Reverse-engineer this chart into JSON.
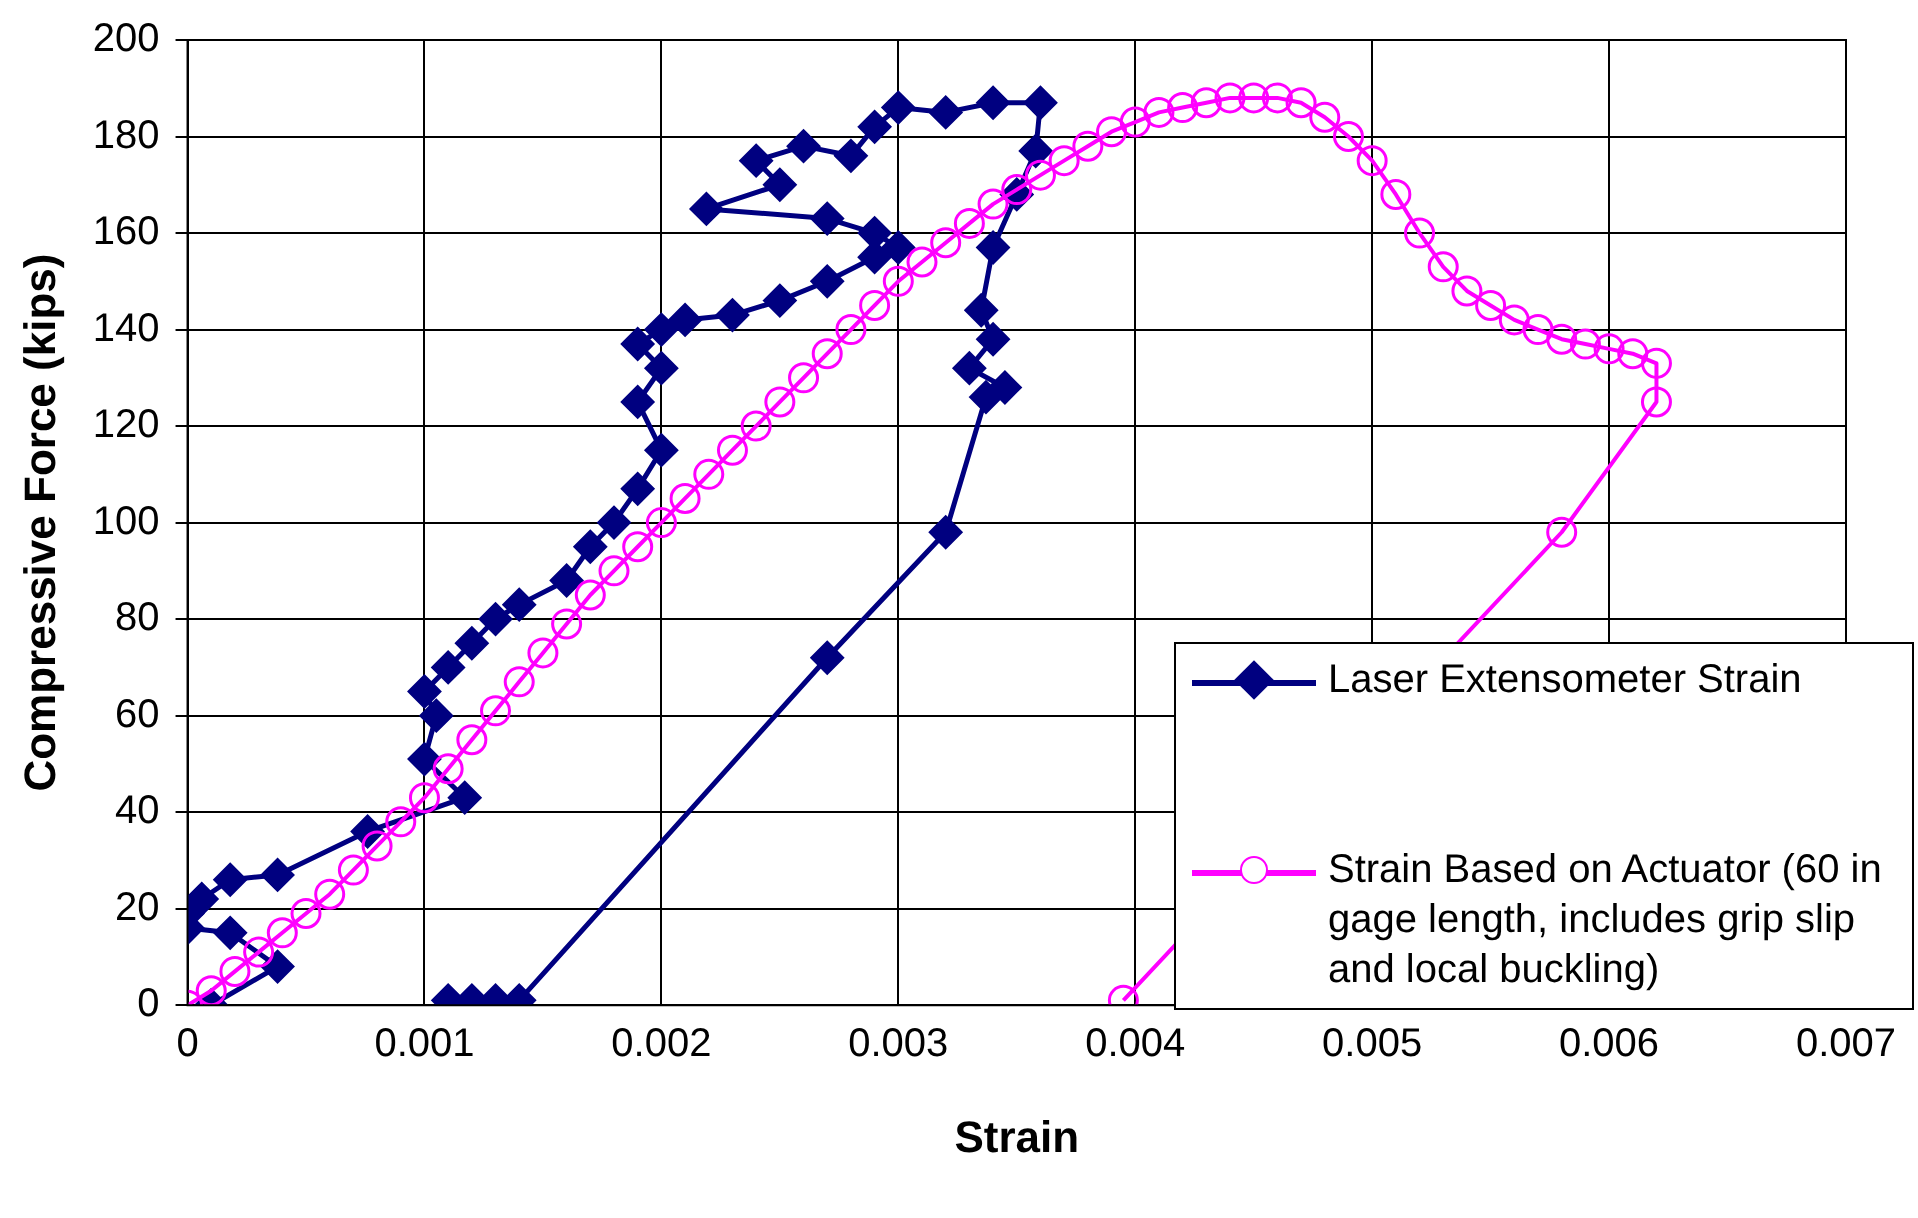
{
  "chart_data": {
    "type": "line",
    "xlabel": "Strain",
    "ylabel": "Compressive Force (kips)",
    "xlim": [
      0,
      0.007
    ],
    "xticks": [
      0,
      0.001,
      0.002,
      0.003,
      0.004,
      0.005,
      0.006,
      0.007
    ],
    "ylim": [
      0,
      200
    ],
    "yticks": [
      0,
      20,
      40,
      60,
      80,
      100,
      120,
      140,
      160,
      180,
      200
    ],
    "grid": true,
    "legend": "bottom right",
    "line_style": "solid",
    "series": [
      {
        "name": "Laser Extensometer Strain",
        "color": "#000080",
        "marker": "diamond",
        "x": [
          0.0001,
          0.00038,
          0.00018,
          0,
          0,
          6e-05,
          0.00018,
          0.00038,
          0.00076,
          0.00117,
          0.001,
          0.00105,
          0.001,
          0.0011,
          0.0012,
          0.0013,
          0.0014,
          0.0016,
          0.0017,
          0.0018,
          0.0019,
          0.002,
          0.0019,
          0.002,
          0.0019,
          0.002,
          0.0021,
          0.0023,
          0.0025,
          0.0027,
          0.0029,
          0.003,
          0.0029,
          0.0027,
          0.00219,
          0.0025,
          0.0024,
          0.0026,
          0.0028,
          0.0029,
          0.003,
          0.0032,
          0.0034,
          0.0036,
          0.00358,
          0.0035,
          0.0034,
          0.00335,
          0.0034,
          0.0033,
          0.00345,
          0.00337,
          0.0032,
          0.0027,
          0.0014,
          0.0013,
          0.0012,
          0.0011
        ],
        "values": [
          0,
          8,
          15,
          16,
          19,
          22,
          26,
          27,
          36,
          43,
          51,
          60,
          65,
          70,
          75,
          80,
          83,
          88,
          95,
          100,
          107,
          115,
          125,
          132,
          137,
          140,
          142,
          143,
          146,
          150,
          155,
          157,
          160,
          163,
          165,
          170,
          175,
          178,
          176,
          182,
          186,
          185,
          187,
          187,
          177,
          168,
          157,
          144,
          138,
          132,
          128,
          126,
          98,
          72,
          1,
          1,
          1,
          1
        ]
      },
      {
        "name": "Strain Based on Actuator (60 in gage length, includes grip slip and local buckling)",
        "color": "#ff00ff",
        "marker": "circle",
        "x": [
          0,
          0.0001,
          0.0002,
          0.0003,
          0.0004,
          0.0005,
          0.0006,
          0.0007,
          0.0008,
          0.0009,
          0.001,
          0.0011,
          0.0012,
          0.0013,
          0.0014,
          0.0015,
          0.0016,
          0.0017,
          0.0018,
          0.0019,
          0.002,
          0.0021,
          0.0022,
          0.0023,
          0.0024,
          0.0025,
          0.0026,
          0.0027,
          0.0028,
          0.0029,
          0.003,
          0.0031,
          0.0032,
          0.0033,
          0.0034,
          0.0035,
          0.0036,
          0.0037,
          0.0038,
          0.0039,
          0.004,
          0.0041,
          0.0042,
          0.0043,
          0.0044,
          0.0045,
          0.0046,
          0.0047,
          0.0048,
          0.0049,
          0.005,
          0.0051,
          0.0052,
          0.0053,
          0.0054,
          0.0055,
          0.0056,
          0.0057,
          0.0058,
          0.0059,
          0.006,
          0.0061,
          0.0062,
          0.0062,
          0.0058,
          0.00395
        ],
        "values": [
          0,
          3,
          7,
          11,
          15,
          19,
          23,
          28,
          33,
          38,
          43,
          49,
          55,
          61,
          67,
          73,
          79,
          85,
          90,
          95,
          100,
          105,
          110,
          115,
          120,
          125,
          130,
          135,
          140,
          145,
          150,
          154,
          158,
          162,
          166,
          169,
          172,
          175,
          178,
          181,
          183,
          185,
          186,
          187,
          188,
          188,
          188,
          187,
          184,
          180,
          175,
          168,
          160,
          153,
          148,
          145,
          142,
          140,
          138,
          137,
          136,
          135,
          133,
          125,
          98,
          1
        ]
      }
    ]
  }
}
